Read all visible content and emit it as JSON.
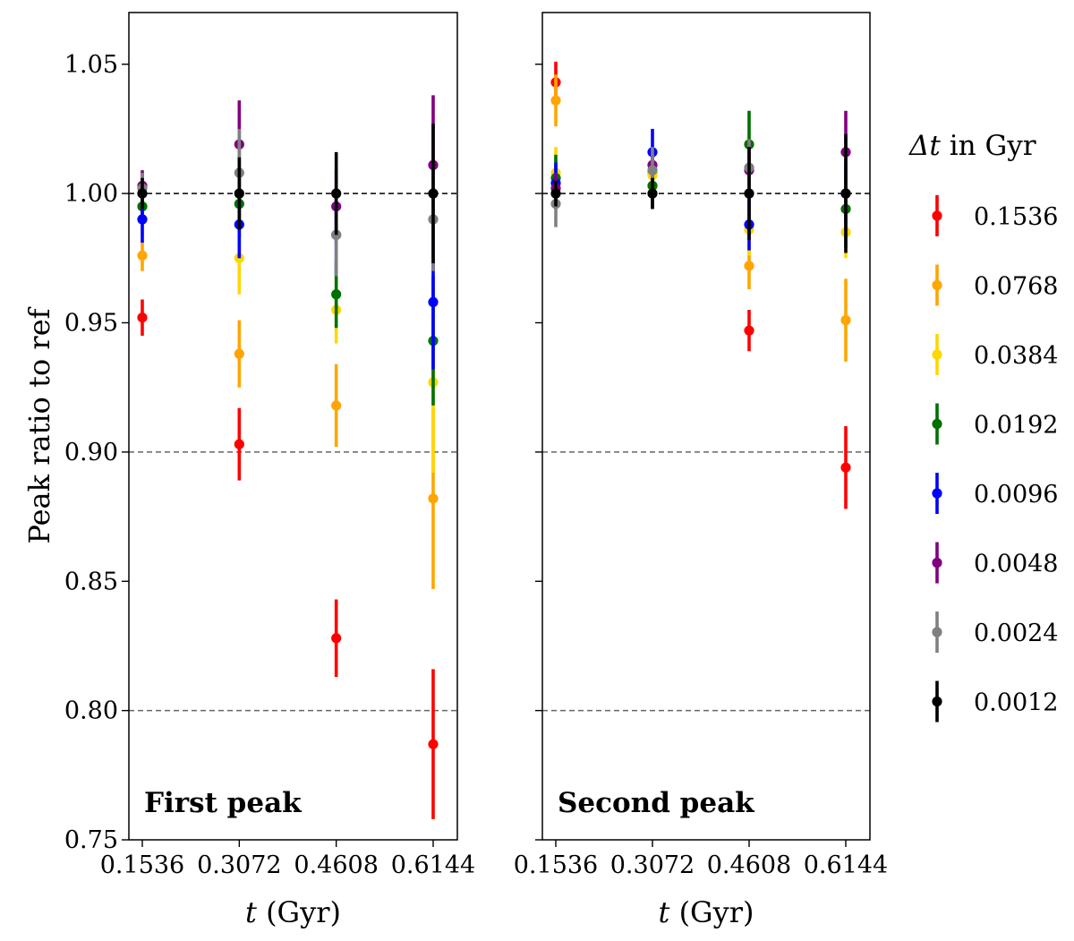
{
  "chart_data": {
    "type": "scatter",
    "ylabel": "Peak ratio to ref",
    "xlabel": "t (Gyr)",
    "xlabel_var": "t",
    "xlabel_unit": "(Gyr)",
    "ylim": [
      0.75,
      1.07
    ],
    "yticks": [
      0.75,
      0.8,
      0.85,
      0.9,
      0.95,
      1.0,
      1.05
    ],
    "ytick_labels": [
      "0.75",
      "0.80",
      "0.85",
      "0.90",
      "0.95",
      "1.00",
      "1.05"
    ],
    "x": [
      0.1536,
      0.3072,
      0.4608,
      0.6144
    ],
    "xtick_labels": [
      "0.1536",
      "0.3072",
      "0.4608",
      "0.6144"
    ],
    "reference_lines": [
      {
        "y": 1.0,
        "color": "#000000",
        "style": "dashed"
      },
      {
        "y": 0.9,
        "color": "#666666",
        "style": "dashed"
      },
      {
        "y": 0.8,
        "color": "#666666",
        "style": "dashed"
      }
    ],
    "legend": {
      "title": "Δt in Gyr",
      "title_symbol": "Δt",
      "title_rest": " in Gyr",
      "position": "right"
    },
    "series": [
      {
        "name": "0.1536",
        "color": "#ff0000"
      },
      {
        "name": "0.0768",
        "color": "#ffa500"
      },
      {
        "name": "0.0384",
        "color": "#ffd700"
      },
      {
        "name": "0.0192",
        "color": "#007000"
      },
      {
        "name": "0.0096",
        "color": "#0000ff"
      },
      {
        "name": "0.0048",
        "color": "#800080"
      },
      {
        "name": "0.0024",
        "color": "#808080"
      },
      {
        "name": "0.0012",
        "color": "#000000"
      }
    ],
    "panels": [
      {
        "title": "First peak",
        "series": [
          {
            "name": "0.1536",
            "values": [
              0.952,
              0.903,
              0.828,
              0.787
            ],
            "errors": [
              0.007,
              0.014,
              0.015,
              0.029
            ]
          },
          {
            "name": "0.0768",
            "values": [
              0.976,
              0.938,
              0.918,
              0.882
            ],
            "errors": [
              0.006,
              0.013,
              0.016,
              0.035
            ]
          },
          {
            "name": "0.0384",
            "values": [
              0.99,
              0.975,
              0.955,
              0.927
            ],
            "errors": [
              0.006,
              0.014,
              0.013,
              0.035
            ]
          },
          {
            "name": "0.0192",
            "values": [
              0.995,
              0.996,
              0.961,
              0.943
            ],
            "errors": [
              0.006,
              0.013,
              0.013,
              0.025
            ]
          },
          {
            "name": "0.0096",
            "values": [
              0.99,
              0.988,
              0.984,
              0.958
            ],
            "errors": [
              0.009,
              0.013,
              0.016,
              0.026
            ]
          },
          {
            "name": "0.0048",
            "values": [
              1.003,
              1.019,
              0.995,
              1.011
            ],
            "errors": [
              0.006,
              0.017,
              0.014,
              0.027
            ]
          },
          {
            "name": "0.0024",
            "values": [
              1.002,
              1.008,
              0.984,
              0.99
            ],
            "errors": [
              0.006,
              0.017,
              0.016,
              0.02
            ]
          },
          {
            "name": "0.0012",
            "values": [
              1.0,
              1.0,
              1.0,
              1.0
            ],
            "errors": [
              0.006,
              0.014,
              0.016,
              0.027
            ]
          }
        ]
      },
      {
        "title": "Second peak",
        "series": [
          {
            "name": "0.1536",
            "values": [
              1.043,
              1.008,
              0.947,
              0.894
            ],
            "errors": [
              0.008,
              0.01,
              0.008,
              0.016
            ]
          },
          {
            "name": "0.0768",
            "values": [
              1.036,
              1.008,
              0.972,
              0.951
            ],
            "errors": [
              0.01,
              0.01,
              0.009,
              0.016
            ]
          },
          {
            "name": "0.0384",
            "values": [
              1.008,
              1.007,
              0.986,
              0.985
            ],
            "errors": [
              0.01,
              0.01,
              0.01,
              0.01
            ]
          },
          {
            "name": "0.0192",
            "values": [
              1.006,
              1.003,
              1.019,
              0.994
            ],
            "errors": [
              0.009,
              0.009,
              0.013,
              0.015
            ]
          },
          {
            "name": "0.0096",
            "values": [
              1.004,
              1.016,
              0.988,
              1.0
            ],
            "errors": [
              0.008,
              0.009,
              0.01,
              0.012
            ]
          },
          {
            "name": "0.0048",
            "values": [
              1.002,
              1.011,
              1.009,
              1.016
            ],
            "errors": [
              0.006,
              0.007,
              0.01,
              0.016
            ]
          },
          {
            "name": "0.0024",
            "values": [
              0.996,
              1.009,
              1.01,
              1.0
            ],
            "errors": [
              0.009,
              0.009,
              0.011,
              0.02
            ]
          },
          {
            "name": "0.0012",
            "values": [
              1.0,
              1.0,
              1.0,
              1.0
            ],
            "errors": [
              0.005,
              0.006,
              0.018,
              0.023
            ]
          }
        ]
      }
    ]
  }
}
